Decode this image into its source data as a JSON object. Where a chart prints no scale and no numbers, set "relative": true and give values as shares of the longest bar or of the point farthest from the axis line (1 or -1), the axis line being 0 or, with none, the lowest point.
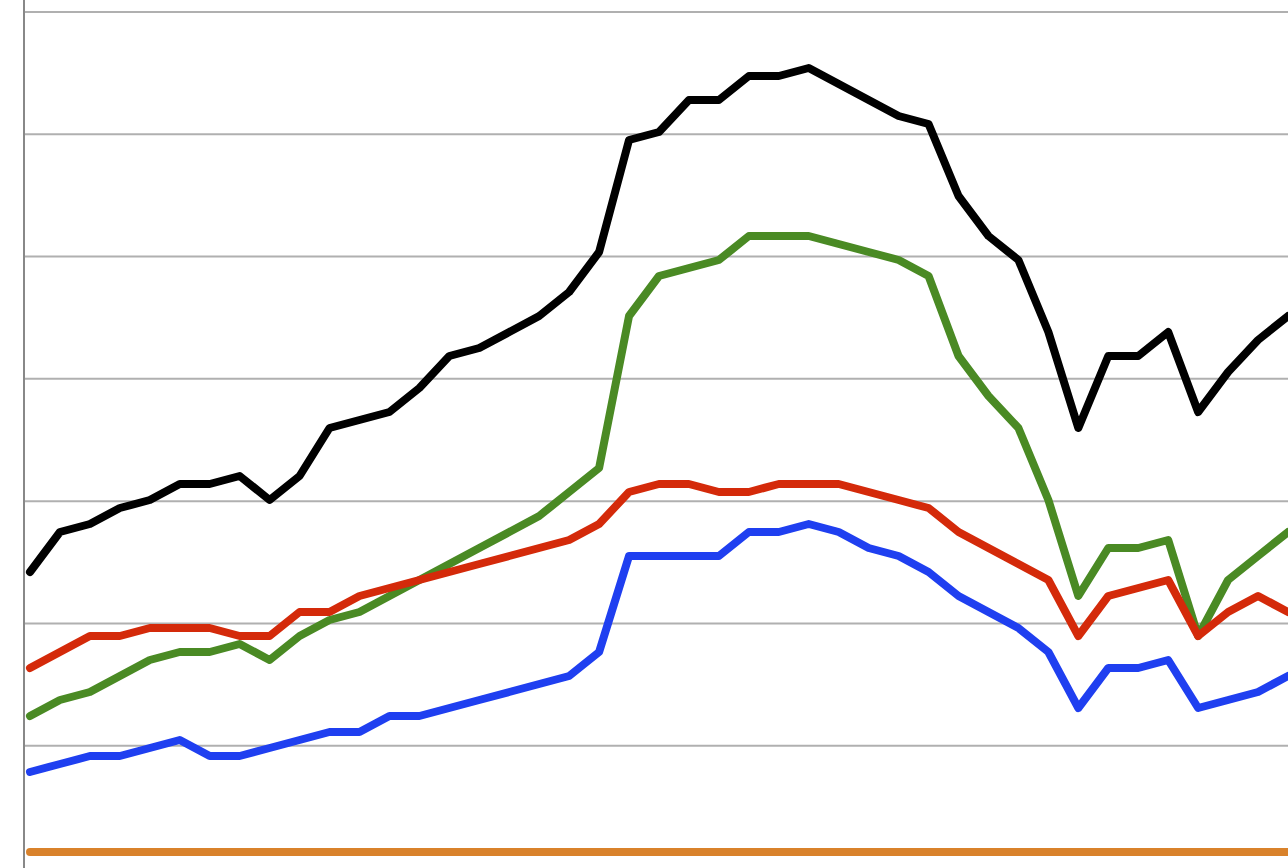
{
  "chart_data": {
    "type": "line",
    "relative": true,
    "grid": "y",
    "line_style": "solid",
    "marker": "none",
    "categories": [
      null,
      null,
      null,
      null,
      null,
      null,
      null,
      null,
      null,
      null,
      null,
      null,
      null,
      null,
      null,
      null,
      null,
      null,
      null,
      null,
      null,
      null,
      null,
      null,
      null,
      null,
      null,
      null,
      null,
      null,
      null,
      null,
      null,
      null,
      null,
      null,
      null,
      null,
      null,
      null,
      null,
      null,
      null
    ],
    "series": [
      {
        "color": "#000000",
        "values": [
          0.37,
          0.42,
          0.43,
          0.45,
          0.46,
          0.48,
          0.48,
          0.49,
          0.46,
          0.49,
          0.55,
          0.56,
          0.57,
          0.6,
          0.64,
          0.65,
          0.67,
          0.69,
          0.72,
          0.77,
          0.91,
          0.92,
          0.96,
          0.96,
          0.99,
          0.99,
          1,
          0.98,
          0.96,
          0.94,
          0.93,
          0.84,
          0.79,
          0.76,
          0.67,
          0.55,
          0.64,
          0.64,
          0.67,
          0.57,
          0.62,
          0.66,
          0.69
        ]
      },
      {
        "color": "#4a8a24",
        "values": [
          0.19,
          0.21,
          0.22,
          0.24,
          0.26,
          0.27,
          0.27,
          0.28,
          0.26,
          0.29,
          0.31,
          0.32,
          0.34,
          0.36,
          0.38,
          0.4,
          0.42,
          0.44,
          0.47,
          0.5,
          0.69,
          0.74,
          0.75,
          0.76,
          0.79,
          0.79,
          0.79,
          0.78,
          0.77,
          0.76,
          0.74,
          0.64,
          0.59,
          0.55,
          0.46,
          0.34,
          0.4,
          0.4,
          0.41,
          0.29,
          0.36,
          0.39,
          0.42
        ]
      },
      {
        "color": "#d42a0a",
        "values": [
          0.25,
          0.27,
          0.29,
          0.29,
          0.3,
          0.3,
          0.3,
          0.29,
          0.29,
          0.32,
          0.32,
          0.34,
          0.35,
          0.36,
          0.37,
          0.38,
          0.39,
          0.4,
          0.41,
          0.43,
          0.47,
          0.48,
          0.48,
          0.47,
          0.47,
          0.48,
          0.48,
          0.48,
          0.47,
          0.46,
          0.45,
          0.42,
          0.4,
          0.38,
          0.36,
          0.29,
          0.34,
          0.35,
          0.36,
          0.29,
          0.32,
          0.34,
          0.32
        ]
      },
      {
        "color": "#1f3ff0",
        "values": [
          0.12,
          0.13,
          0.14,
          0.14,
          0.15,
          0.16,
          0.14,
          0.14,
          0.15,
          0.16,
          0.17,
          0.17,
          0.19,
          0.19,
          0.2,
          0.21,
          0.22,
          0.23,
          0.24,
          0.27,
          0.39,
          0.39,
          0.39,
          0.39,
          0.42,
          0.42,
          0.43,
          0.42,
          0.4,
          0.39,
          0.37,
          0.34,
          0.32,
          0.3,
          0.27,
          0.2,
          0.25,
          0.25,
          0.26,
          0.2,
          0.21,
          0.22,
          0.24
        ]
      },
      {
        "color": "#d9822b",
        "values": [
          0.02,
          0.02,
          0.02,
          0.02,
          0.02,
          0.02,
          0.02,
          0.02,
          0.02,
          0.02,
          0.02,
          0.02,
          0.02,
          0.02,
          0.02,
          0.02,
          0.02,
          0.02,
          0.02,
          0.02,
          0.02,
          0.02,
          0.02,
          0.02,
          0.02,
          0.02,
          0.02,
          0.02,
          0.02,
          0.02,
          0.02,
          0.02,
          0.02,
          0.02,
          0.02,
          0.02,
          0.02,
          0.02,
          0.02,
          0.02,
          0.02,
          0.02,
          0.02
        ]
      }
    ]
  }
}
